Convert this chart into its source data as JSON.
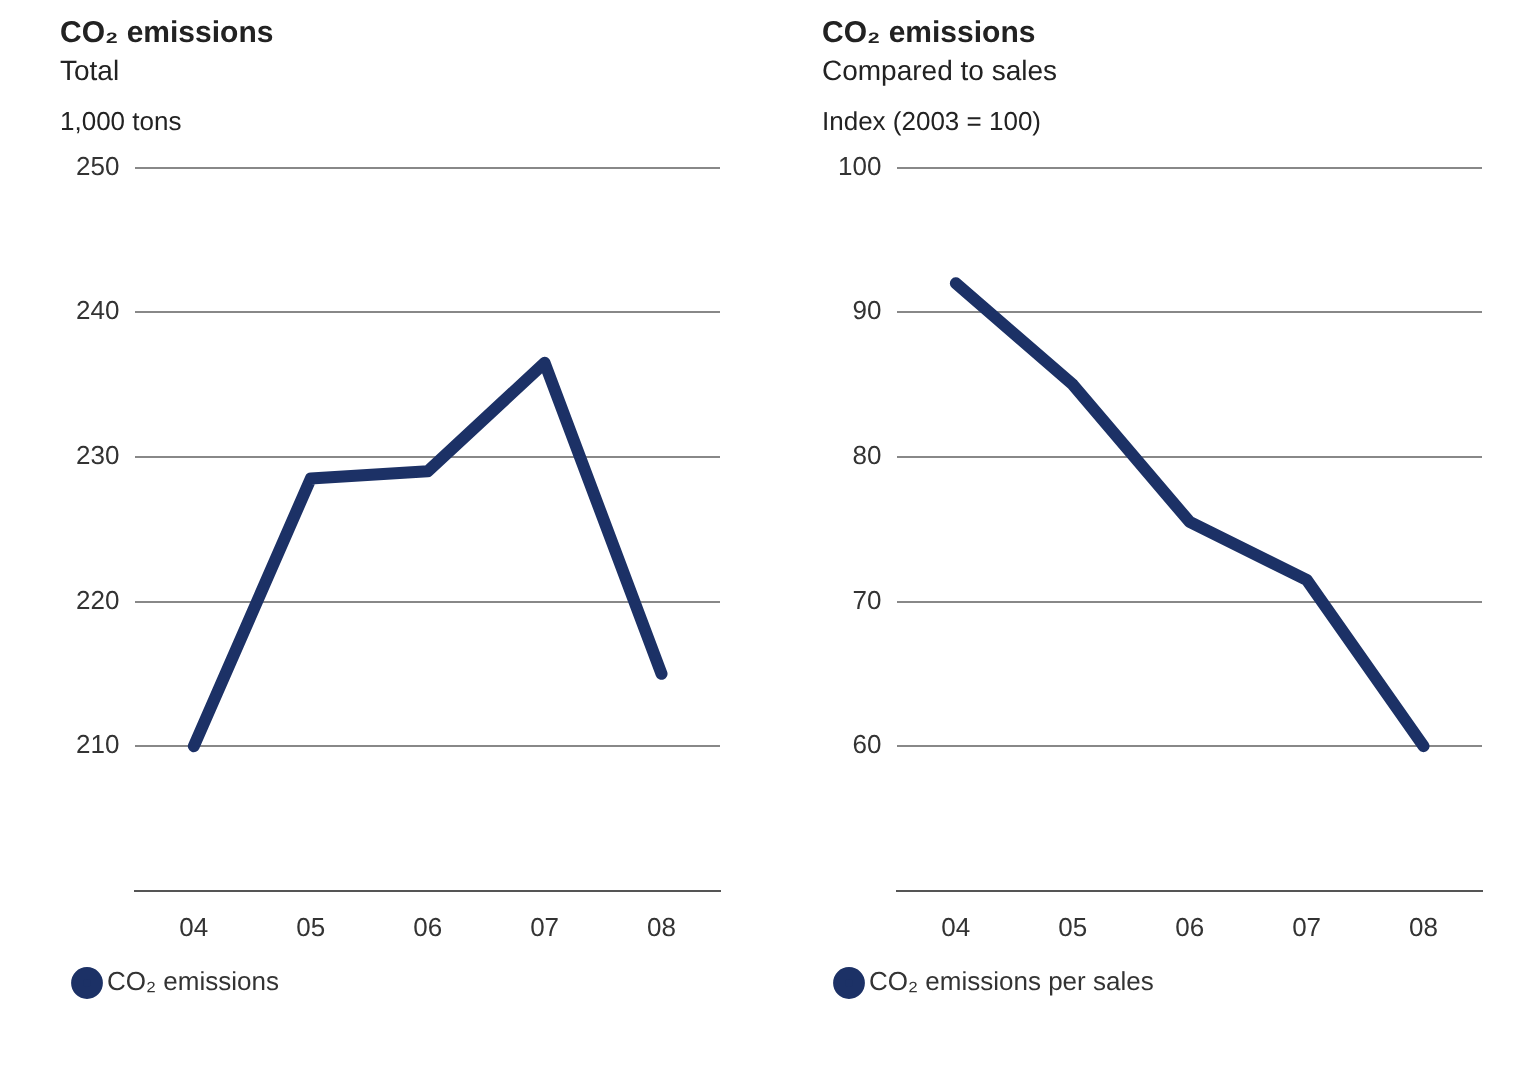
{
  "chart_data": [
    {
      "type": "line",
      "title": "CO₂ emissions",
      "subtitle": "Total",
      "ylabel": "1,000 tons",
      "categories": [
        "04",
        "05",
        "06",
        "07",
        "08"
      ],
      "series": [
        {
          "name": "CO₂ emissions",
          "color": "#1c3166",
          "values": [
            210,
            228.5,
            229,
            236.5,
            215
          ]
        }
      ],
      "ylim": [
        200,
        250
      ],
      "yticks": [
        210,
        220,
        230,
        240,
        250
      ],
      "grid": "y",
      "legend": "bottom"
    },
    {
      "type": "line",
      "title": "CO₂ emissions",
      "subtitle": "Compared to sales",
      "ylabel": "Index (2003 = 100)",
      "categories": [
        "04",
        "05",
        "06",
        "07",
        "08"
      ],
      "series": [
        {
          "name": "CO₂ emissions per sales",
          "color": "#1c3166",
          "values": [
            92,
            85,
            75.5,
            71.5,
            60
          ]
        }
      ],
      "ylim": [
        50,
        100
      ],
      "yticks": [
        60,
        70,
        80,
        90,
        100
      ],
      "grid": "y",
      "legend": "bottom"
    }
  ]
}
